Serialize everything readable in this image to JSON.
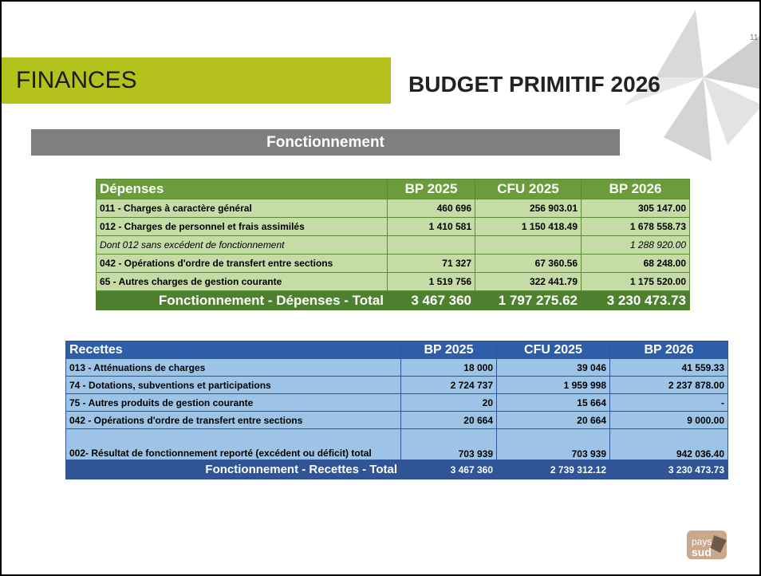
{
  "page_number": "11",
  "header": {
    "title": "FINANCES",
    "subtitle": "BUDGET PRIMITIF 2026"
  },
  "section_title": "Fonctionnement",
  "depenses": {
    "columns": [
      "Dépenses",
      "BP 2025",
      "CFU 2025",
      "BP 2026"
    ],
    "rows": [
      [
        "011 - Charges à caractère général",
        "460 696",
        "256 903.01",
        "305 147.00"
      ],
      [
        "012 - Charges de personnel et frais assimilés",
        "1 410 581",
        "1 150 418.49",
        "1 678 558.73"
      ],
      [
        "Dont 012  sans excédent de fonctionnement",
        "",
        "",
        "1 288 920.00"
      ],
      [
        "042 - Opérations d'ordre de transfert entre sections",
        "71 327",
        "67 360.56",
        "68 248.00"
      ],
      [
        "65 - Autres charges de gestion courante",
        "1 519 756",
        "322 441.79",
        "1 175 520.00"
      ]
    ],
    "total": [
      "Fonctionnement - Dépenses - Total",
      "3 467 360",
      "1 797 275.62",
      "3 230 473.73"
    ]
  },
  "recettes": {
    "columns": [
      "Recettes",
      "BP 2025",
      "CFU 2025",
      "BP 2026"
    ],
    "rows": [
      [
        "013 - Atténuations de charges",
        "18 000",
        "39 046",
        "41 559.33"
      ],
      [
        "74 - Dotations, subventions et participations",
        "2 724 737",
        "1 959 998",
        "2 237 878.00"
      ],
      [
        "75 - Autres produits de gestion courante",
        "20",
        "15 664",
        "-"
      ],
      [
        "042 - Opérations d'ordre de transfert entre sections",
        "20 664",
        "20 664",
        "9 000.00"
      ],
      [
        "002- Résultat de fonctionnement reporté (excédent ou déficit) total",
        "703 939",
        "703 939",
        "942 036.40"
      ]
    ],
    "total": [
      "Fonctionnement - Recettes - Total",
      "3 467 360",
      "2 739 312.12",
      "3 230 473.73"
    ]
  }
}
